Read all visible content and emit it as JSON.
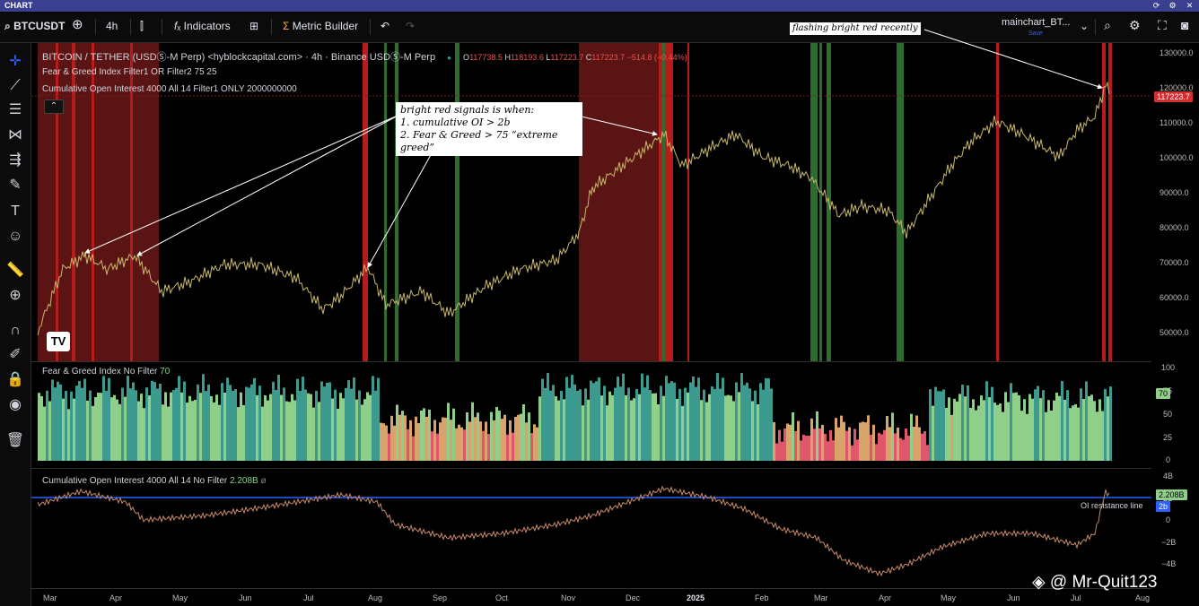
{
  "window": {
    "title": "CHART"
  },
  "toolbar": {
    "symbol": "BTCUSDT",
    "interval": "4h",
    "indicators_label": "Indicators",
    "metric_builder_label": "Metric Builder",
    "layout_name": "mainchart_BT...",
    "layout_status": "Save"
  },
  "legend": {
    "main_title": "BITCOIN / TETHER (USDⓈ-M Perp) <hyblockcapital.com> · 4h · Binance USDⓈ-M Perp",
    "o_label": "O",
    "o_value": "117738.5",
    "h_label": "H",
    "h_value": "118193.6",
    "l_label": "L",
    "l_value": "117223.7",
    "c_label": "C",
    "c_value": "117223.7",
    "change": "−514.8 (−0.44%)",
    "filter1": "Fear & Greed Index Filter1 OR Filter2 75 25",
    "filter2": "Cumulative Open Interest 4000 All 14 Filter1 ONLY 2000000000"
  },
  "fear_greed_pane": {
    "title": "Fear & Greed Index No Filter",
    "value": "70"
  },
  "oi_pane": {
    "title": "Cumulative Open Interest 4000 All 14 No Filter",
    "value": "2.208B",
    "resistance_label": "OI resistance line",
    "resistance_tag": "2b"
  },
  "annotations": {
    "signal_line1": "bright red signals is when:",
    "signal_line2": "1. cumulative OI > 2b",
    "signal_line3": "2. Fear & Greed > 75 “extreme greed”",
    "recent": "flashing bright red recently"
  },
  "price_axis": [
    "130000.0",
    "120000.0",
    "110000.0",
    "100000.0",
    "90000.0",
    "80000.0",
    "70000.0",
    "60000.0",
    "50000.0"
  ],
  "price_tag": "117223.7",
  "fg_axis": [
    "100",
    "75",
    "50",
    "25",
    "0"
  ],
  "oi_axis": [
    "4B",
    "2B",
    "0",
    "−2B",
    "−4B"
  ],
  "time_axis": [
    "Mar",
    "Apr",
    "May",
    "Jun",
    "Jul",
    "Aug",
    "Sep",
    "Oct",
    "Nov",
    "Dec",
    "2025",
    "Feb",
    "Mar",
    "Apr",
    "May",
    "Jun",
    "Jul",
    "Aug"
  ],
  "watermark": "@ Mr-Quit123",
  "colors": {
    "bright_red": "#b71c1c",
    "dark_red": "#5a1414",
    "green_band": "#2e6b2e",
    "fg_green": "#8fcf8a",
    "fg_teal": "#3d9a8f",
    "fg_red": "#e0576b",
    "oi_line": "#2962ff"
  }
}
